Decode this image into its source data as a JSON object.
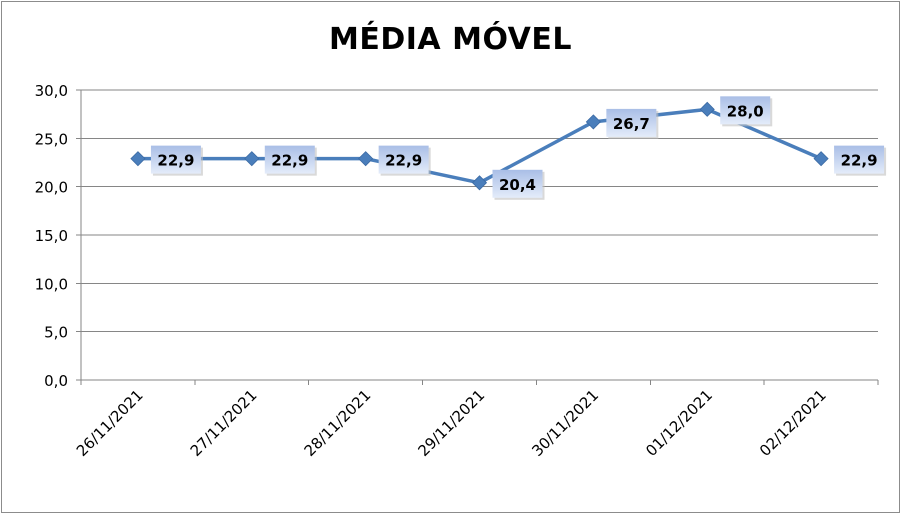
{
  "chart_data": {
    "type": "line",
    "title": "MÉDIA MÓVEL",
    "categories": [
      "26/11/2021",
      "27/11/2021",
      "28/11/2021",
      "29/11/2021",
      "30/11/2021",
      "01/12/2021",
      "02/12/2021"
    ],
    "series": [
      {
        "values": [
          22.9,
          22.9,
          22.9,
          20.4,
          26.7,
          28.0,
          22.9
        ],
        "labels": [
          "22,9",
          "22,9",
          "22,9",
          "20,4",
          "26,7",
          "28,0",
          "22,9"
        ],
        "color": "#4a7ebb",
        "marker": "diamond"
      }
    ],
    "y_ticks": [
      "0,0",
      "5,0",
      "10,0",
      "15,0",
      "20,0",
      "25,0",
      "30,0"
    ],
    "ylim": [
      0,
      30
    ],
    "grid": true,
    "xlabel": "",
    "ylabel": ""
  }
}
